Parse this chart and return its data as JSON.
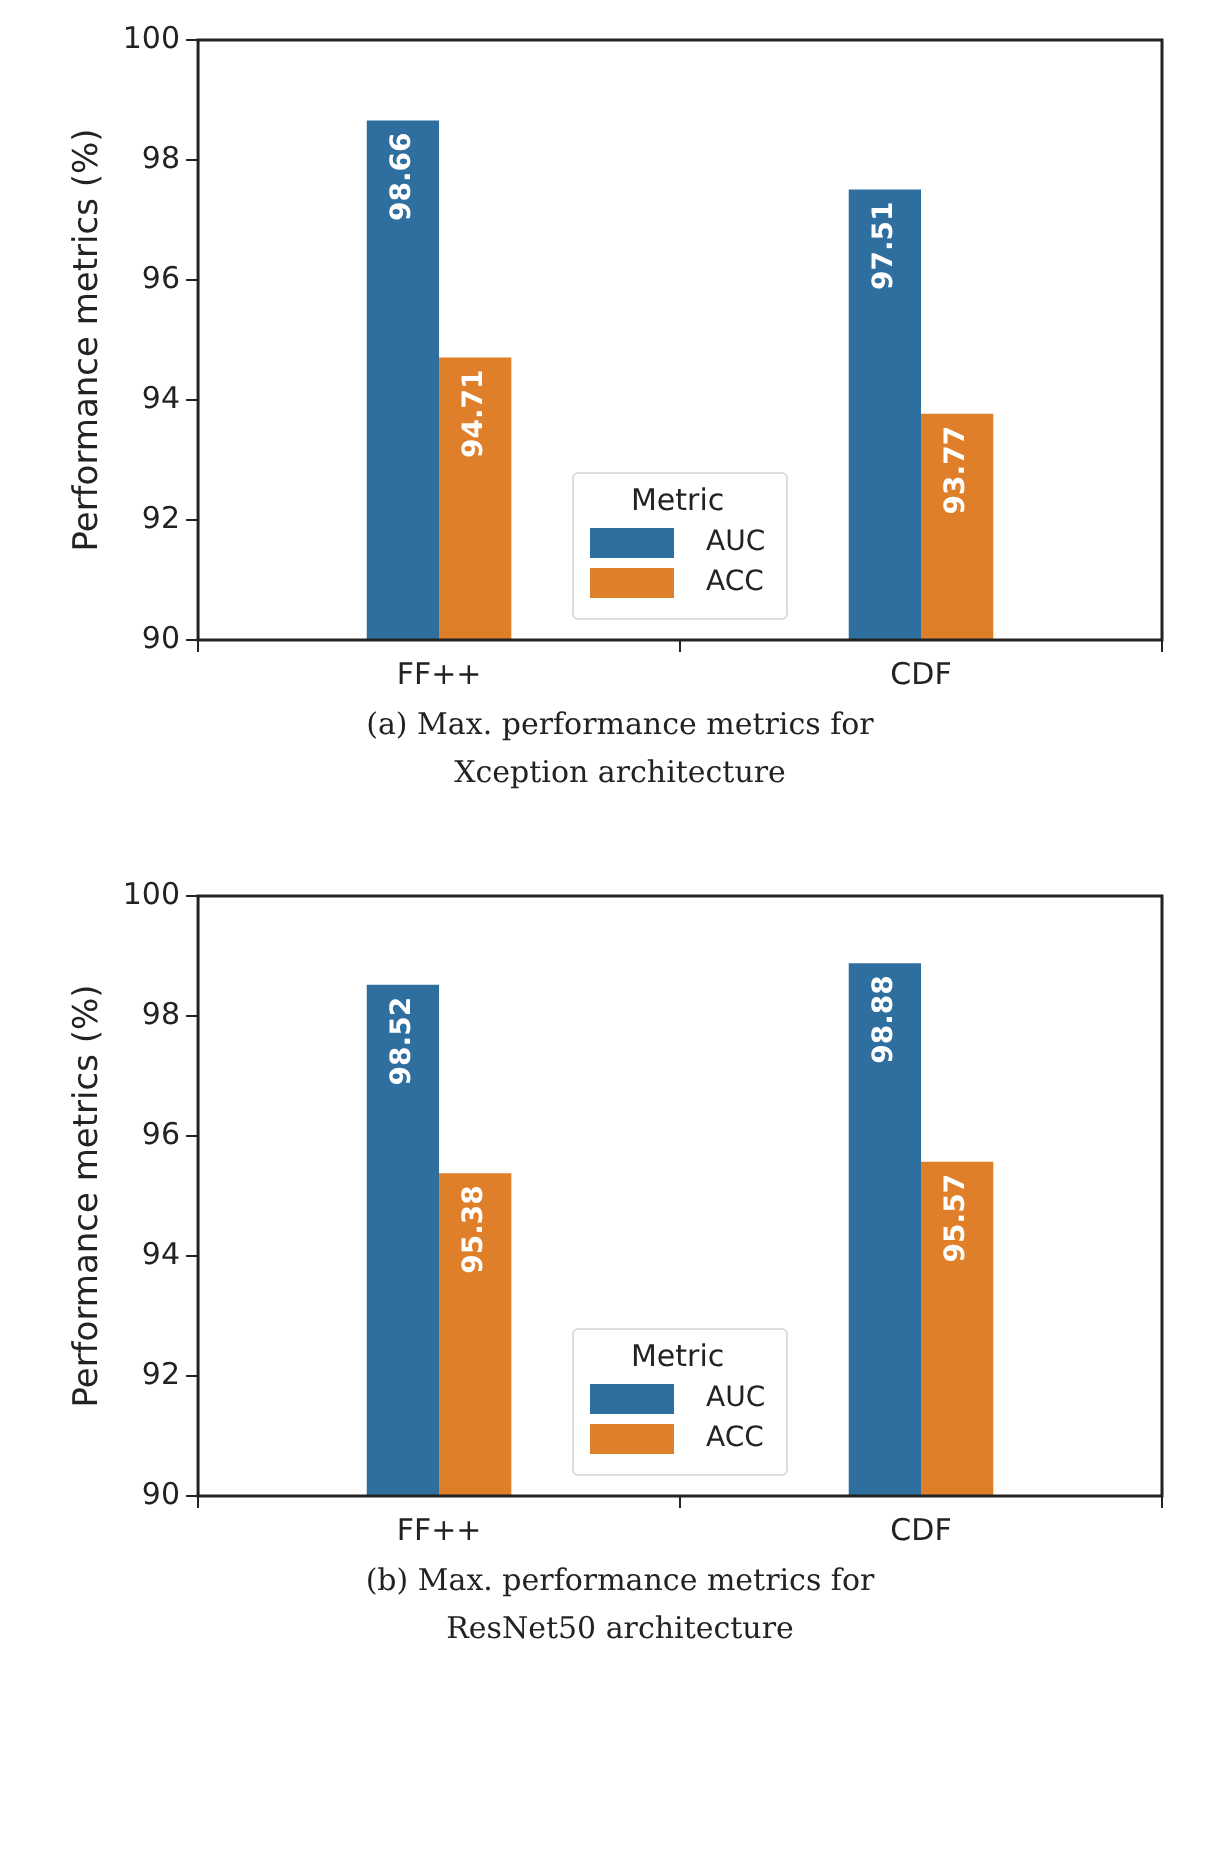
{
  "chart_data": [
    {
      "type": "bar",
      "categories": [
        "FF++",
        "CDF"
      ],
      "ylabel": "Performance metrics (%)",
      "legend_title": "Metric",
      "legend": "bottom",
      "ylim": [
        90,
        100
      ],
      "yticks": [
        90,
        92,
        94,
        96,
        98,
        100
      ],
      "data_labels": true,
      "series": [
        {
          "name": "AUC",
          "color": "#2f6f9f",
          "values": [
            98.66,
            97.51
          ]
        },
        {
          "name": "ACC",
          "color": "#df7f2a",
          "values": [
            94.71,
            93.77
          ]
        }
      ],
      "annotations": [
        "(a) Max. performance metrics for Xception architecture"
      ]
    },
    {
      "type": "bar",
      "categories": [
        "FF++",
        "CDF"
      ],
      "ylabel": "Performance metrics (%)",
      "legend_title": "Metric",
      "legend": "bottom",
      "ylim": [
        90,
        100
      ],
      "yticks": [
        90,
        92,
        94,
        96,
        98,
        100
      ],
      "data_labels": true,
      "series": [
        {
          "name": "AUC",
          "color": "#2f6f9f",
          "values": [
            98.52,
            98.88
          ]
        },
        {
          "name": "ACC",
          "color": "#df7f2a",
          "values": [
            95.38,
            95.57
          ]
        }
      ],
      "annotations": [
        "(b) Max. performance metrics for ResNet50 architecture"
      ]
    }
  ]
}
